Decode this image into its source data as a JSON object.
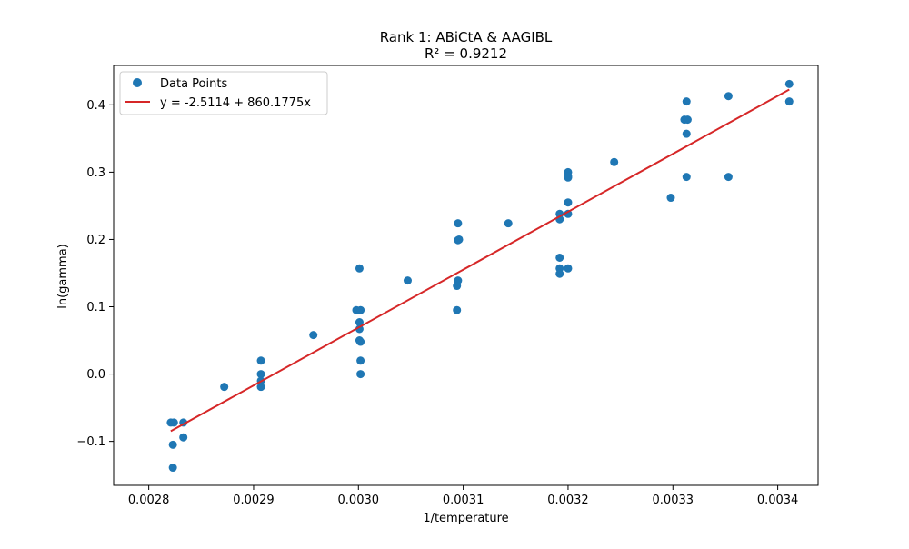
{
  "chart_data": {
    "type": "scatter",
    "title": "Rank 1: ABiCtA & AAGIBL",
    "subtitle": "R² = 0.9212",
    "xlabel": "1/temperature",
    "ylabel": "ln(gamma)",
    "xlim": [
      0.0027665,
      0.0034385
    ],
    "ylim": [
      -0.1653,
      0.4585
    ],
    "xticks": [
      0.0028,
      0.0029,
      0.003,
      0.0031,
      0.0032,
      0.0033,
      0.0034
    ],
    "xtick_labels": [
      "0.0028",
      "0.0029",
      "0.0030",
      "0.0031",
      "0.0032",
      "0.0033",
      "0.0034"
    ],
    "yticks": [
      -0.1,
      0.0,
      0.1,
      0.2,
      0.3,
      0.4
    ],
    "ytick_labels": [
      "−0.1",
      "0.0",
      "0.1",
      "0.2",
      "0.3",
      "0.4"
    ],
    "grid": false,
    "legend_position": "top-left",
    "series": [
      {
        "name": "Data Points",
        "kind": "scatter",
        "color": "#1f77b4",
        "points": [
          [
            0.002821,
            -0.072
          ],
          [
            0.002824,
            -0.072
          ],
          [
            0.002823,
            -0.105
          ],
          [
            0.002823,
            -0.139
          ],
          [
            0.002833,
            -0.072
          ],
          [
            0.002833,
            -0.094
          ],
          [
            0.002872,
            -0.019
          ],
          [
            0.002907,
            0.02
          ],
          [
            0.002907,
            0.0
          ],
          [
            0.002907,
            -0.01
          ],
          [
            0.002907,
            -0.019
          ],
          [
            0.002957,
            0.058
          ],
          [
            0.002998,
            0.095
          ],
          [
            0.003002,
            0.095
          ],
          [
            0.003001,
            0.157
          ],
          [
            0.003001,
            0.077
          ],
          [
            0.003001,
            0.067
          ],
          [
            0.003001,
            0.05
          ],
          [
            0.003002,
            0.048
          ],
          [
            0.003002,
            0.02
          ],
          [
            0.003002,
            0.0
          ],
          [
            0.003047,
            0.139
          ],
          [
            0.003095,
            0.224
          ],
          [
            0.003095,
            0.199
          ],
          [
            0.003096,
            0.2
          ],
          [
            0.003095,
            0.139
          ],
          [
            0.003094,
            0.131
          ],
          [
            0.003094,
            0.095
          ],
          [
            0.003143,
            0.224
          ],
          [
            0.003192,
            0.238
          ],
          [
            0.003192,
            0.23
          ],
          [
            0.003192,
            0.173
          ],
          [
            0.003192,
            0.157
          ],
          [
            0.003192,
            0.149
          ],
          [
            0.0032,
            0.3
          ],
          [
            0.0032,
            0.294
          ],
          [
            0.0032,
            0.292
          ],
          [
            0.0032,
            0.255
          ],
          [
            0.0032,
            0.238
          ],
          [
            0.0032,
            0.157
          ],
          [
            0.003244,
            0.315
          ],
          [
            0.003298,
            0.262
          ],
          [
            0.003313,
            0.405
          ],
          [
            0.003311,
            0.378
          ],
          [
            0.003314,
            0.378
          ],
          [
            0.003313,
            0.357
          ],
          [
            0.003313,
            0.293
          ],
          [
            0.003353,
            0.413
          ],
          [
            0.003353,
            0.293
          ],
          [
            0.003411,
            0.431
          ],
          [
            0.003411,
            0.405
          ]
        ]
      },
      {
        "name": "y = -2.5114 + 860.1775x",
        "kind": "line",
        "color": "#d62728",
        "intercept": -2.5114,
        "slope": 860.1775,
        "x_range": [
          0.002821,
          0.003411
        ]
      }
    ]
  }
}
